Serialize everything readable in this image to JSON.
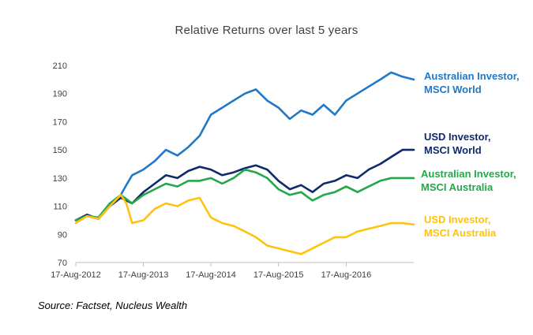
{
  "chart_data": {
    "type": "line",
    "title": "Relative Returns over last 5 years",
    "xlabel": "",
    "ylabel": "",
    "ylim": [
      70,
      210
    ],
    "xlim": [
      "2012-08-17",
      "2017-08-17"
    ],
    "yticks": [
      "70",
      "90",
      "110",
      "130",
      "150",
      "170",
      "190",
      "210"
    ],
    "ytick_values": [
      70,
      90,
      110,
      130,
      150,
      170,
      190,
      210
    ],
    "xticks": [
      "17-Aug-2012",
      "17-Aug-2013",
      "17-Aug-2014",
      "17-Aug-2015",
      "17-Aug-2016"
    ],
    "xtick_dates": [
      "2012-08-17",
      "2013-08-17",
      "2014-08-17",
      "2015-08-17",
      "2016-08-17"
    ],
    "grid": false,
    "legend": "right",
    "series": [
      {
        "name": "Australian Investor, MSCI World",
        "name_lines": [
          "Australian Investor,",
          "MSCI World"
        ],
        "color": "#1f78c8",
        "x": [
          "2012-08-17",
          "2012-10-17",
          "2012-12-17",
          "2013-02-17",
          "2013-04-17",
          "2013-05-17",
          "2013-06-17",
          "2013-08-17",
          "2013-10-17",
          "2013-12-17",
          "2014-02-17",
          "2014-04-17",
          "2014-06-17",
          "2014-08-17",
          "2014-10-17",
          "2014-12-17",
          "2015-02-17",
          "2015-04-17",
          "2015-06-17",
          "2015-08-17",
          "2015-10-17",
          "2015-12-17",
          "2016-02-17",
          "2016-04-17",
          "2016-06-17",
          "2016-08-17",
          "2016-10-17",
          "2016-12-17",
          "2017-02-17",
          "2017-04-17",
          "2017-06-17",
          "2017-08-17"
        ],
        "y": [
          100,
          103,
          101,
          110,
          118,
          125,
          132,
          136,
          142,
          150,
          146,
          152,
          160,
          175,
          180,
          185,
          190,
          193,
          185,
          180,
          172,
          178,
          175,
          182,
          175,
          185,
          190,
          195,
          200,
          205,
          202,
          200
        ]
      },
      {
        "name": "USD Investor, MSCI World",
        "name_lines": [
          "USD Investor,",
          "MSCI World"
        ],
        "color": "#0e2a6b",
        "x": [
          "2012-08-17",
          "2012-10-17",
          "2012-12-17",
          "2013-02-17",
          "2013-04-17",
          "2013-06-17",
          "2013-08-17",
          "2013-10-17",
          "2013-12-17",
          "2014-02-17",
          "2014-04-17",
          "2014-06-17",
          "2014-08-17",
          "2014-10-17",
          "2014-12-17",
          "2015-02-17",
          "2015-04-17",
          "2015-06-17",
          "2015-08-17",
          "2015-10-17",
          "2015-12-17",
          "2016-02-17",
          "2016-04-17",
          "2016-06-17",
          "2016-08-17",
          "2016-10-17",
          "2016-12-17",
          "2017-02-17",
          "2017-04-17",
          "2017-06-17",
          "2017-08-17"
        ],
        "y": [
          100,
          104,
          101,
          110,
          116,
          112,
          120,
          126,
          132,
          130,
          135,
          138,
          136,
          132,
          134,
          137,
          139,
          136,
          128,
          122,
          125,
          120,
          126,
          128,
          132,
          130,
          136,
          140,
          145,
          150,
          150
        ]
      },
      {
        "name": "Australian Investor, MSCI Australia",
        "name_lines": [
          "Australian Investor,",
          "MSCI Australia"
        ],
        "color": "#22a84a",
        "x": [
          "2012-08-17",
          "2012-10-17",
          "2012-12-17",
          "2013-02-17",
          "2013-04-17",
          "2013-06-17",
          "2013-08-17",
          "2013-10-17",
          "2013-12-17",
          "2014-02-17",
          "2014-04-17",
          "2014-06-17",
          "2014-08-17",
          "2014-10-17",
          "2014-12-17",
          "2015-02-17",
          "2015-04-17",
          "2015-06-17",
          "2015-08-17",
          "2015-10-17",
          "2015-12-17",
          "2016-02-17",
          "2016-04-17",
          "2016-06-17",
          "2016-08-17",
          "2016-10-17",
          "2016-12-17",
          "2017-02-17",
          "2017-04-17",
          "2017-06-17",
          "2017-08-17"
        ],
        "y": [
          100,
          103,
          102,
          112,
          118,
          112,
          118,
          122,
          126,
          124,
          128,
          128,
          130,
          126,
          130,
          136,
          134,
          130,
          122,
          118,
          120,
          114,
          118,
          120,
          124,
          120,
          124,
          128,
          130,
          130,
          130
        ]
      },
      {
        "name": "USD Investor, MSCI Australia",
        "name_lines": [
          "USD Investor,",
          "MSCI Australia"
        ],
        "color": "#ffc20e",
        "x": [
          "2012-08-17",
          "2012-10-17",
          "2012-12-17",
          "2013-02-17",
          "2013-04-17",
          "2013-05-17",
          "2013-06-17",
          "2013-08-17",
          "2013-10-17",
          "2013-12-17",
          "2014-02-17",
          "2014-04-17",
          "2014-06-17",
          "2014-08-17",
          "2014-10-17",
          "2014-12-17",
          "2015-02-17",
          "2015-04-17",
          "2015-06-17",
          "2015-08-17",
          "2015-10-17",
          "2015-12-17",
          "2016-02-17",
          "2016-04-17",
          "2016-06-17",
          "2016-08-17",
          "2016-10-17",
          "2016-12-17",
          "2017-02-17",
          "2017-04-17",
          "2017-06-17",
          "2017-08-17"
        ],
        "y": [
          98,
          103,
          101,
          110,
          118,
          112,
          98,
          100,
          108,
          112,
          110,
          114,
          116,
          102,
          98,
          96,
          92,
          88,
          82,
          80,
          78,
          76,
          80,
          84,
          88,
          88,
          92,
          94,
          96,
          98,
          98,
          97
        ]
      }
    ]
  },
  "source_note": "Source: Factset, Nucleus Wealth"
}
